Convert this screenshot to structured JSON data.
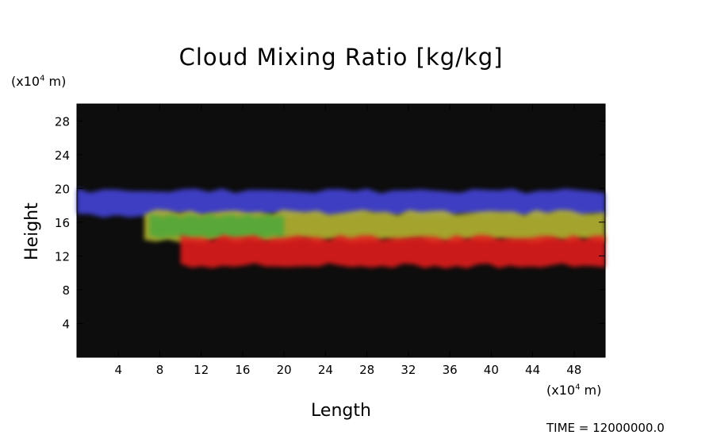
{
  "chart_data": {
    "type": "heatmap",
    "title": "Cloud Mixing Ratio [kg/kg]",
    "xlabel": "Length",
    "ylabel": "Height",
    "x_unit_prefix": "(x10",
    "x_unit_exp": "4",
    "x_unit_suffix": " m)",
    "y_unit_prefix": "(x10",
    "y_unit_exp": "4",
    "y_unit_suffix": " m)",
    "xlim": [
      0,
      51
    ],
    "ylim": [
      0,
      30
    ],
    "x_ticks": [
      4,
      8,
      12,
      16,
      20,
      24,
      28,
      32,
      36,
      40,
      44,
      48
    ],
    "y_ticks": [
      4,
      8,
      12,
      16,
      20,
      24,
      28
    ],
    "background_color": "#0d0d0d",
    "layers": [
      {
        "name": "upper",
        "color": "#4444dd",
        "x_range": [
          0,
          51
        ],
        "y_range": [
          16.5,
          20
        ]
      },
      {
        "name": "middle",
        "color": "#b8b830",
        "x_range": [
          6.5,
          51
        ],
        "y_range": [
          13.5,
          17.5
        ]
      },
      {
        "name": "green",
        "color": "#4fa83a",
        "x_range": [
          7,
          20
        ],
        "y_range": [
          14,
          17
        ]
      },
      {
        "name": "lower",
        "color": "#e61c1c",
        "x_range": [
          10,
          51
        ],
        "y_range": [
          10.5,
          14.5
        ]
      }
    ],
    "grid": false
  },
  "footer": {
    "time_text": "TIME = 12000000.0"
  }
}
